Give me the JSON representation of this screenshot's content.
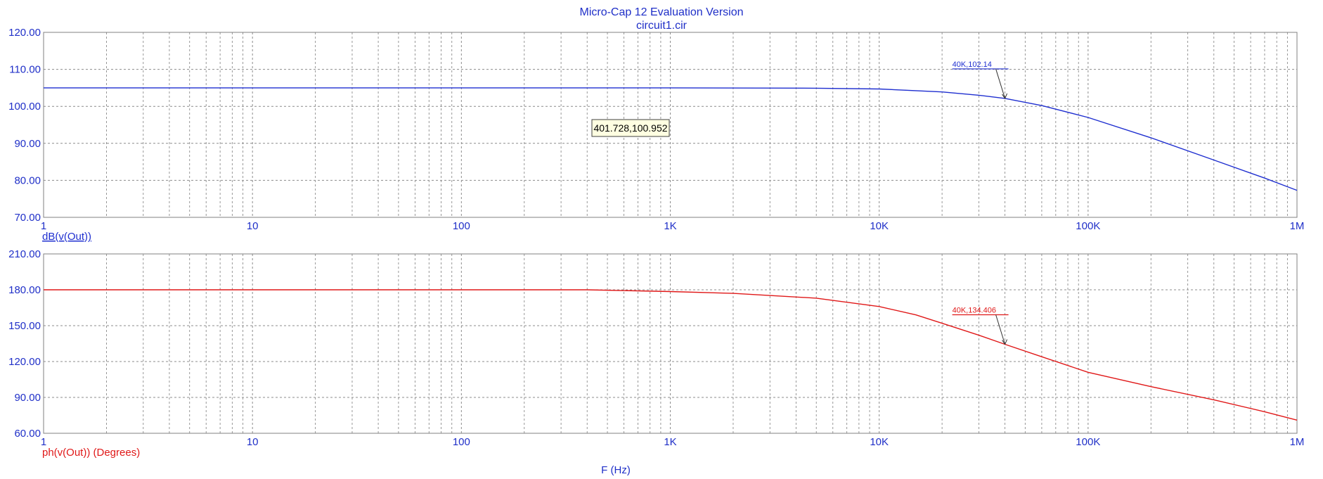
{
  "title_line1": "Micro-Cap 12 Evaluation Version",
  "title_line2": "circuit1.cir",
  "colors": {
    "axis_text": "#1f2fc8",
    "series_mag": "#1f2fd0",
    "series_phase": "#e01818",
    "grid": "#8c8c8c",
    "tooltip_bg": "#ffffe1"
  },
  "chart_data": [
    {
      "type": "line",
      "x_scale": "log",
      "xlim": [
        1,
        1000000
      ],
      "x_tick_labels": [
        "1",
        "10",
        "100",
        "1K",
        "10K",
        "100K",
        "1M"
      ],
      "ylim": [
        70,
        120
      ],
      "y_tick_values": [
        70,
        80,
        90,
        100,
        110,
        120
      ],
      "y_tick_labels": [
        "70.00",
        "80.00",
        "90.00",
        "100.00",
        "110.00",
        "120.00"
      ],
      "ylabel": "dB(v(Out))",
      "grid": true,
      "series": [
        {
          "x": [
            1,
            10,
            100,
            1000,
            5000,
            10000,
            20000,
            30000,
            40000,
            60000,
            100000,
            200000,
            400000,
            700000,
            1000000
          ],
          "y": [
            105.0,
            105.0,
            105.0,
            105.0,
            104.9,
            104.7,
            103.9,
            103.0,
            102.14,
            100.2,
            97.0,
            91.5,
            85.5,
            80.6,
            77.3
          ]
        }
      ],
      "annotations": [
        {
          "label": "40K,102.14",
          "x": 40000,
          "y": 102.14
        }
      ],
      "tooltip": {
        "label": "401.728,100.952"
      }
    },
    {
      "type": "line",
      "x_scale": "log",
      "xlim": [
        1,
        1000000
      ],
      "x_tick_labels": [
        "1",
        "10",
        "100",
        "1K",
        "10K",
        "100K",
        "1M"
      ],
      "ylim": [
        60,
        210
      ],
      "y_tick_values": [
        60,
        90,
        120,
        150,
        180,
        210
      ],
      "y_tick_labels": [
        "60.00",
        "90.00",
        "120.00",
        "150.00",
        "180.00",
        "210.00"
      ],
      "ylabel": "ph(v(Out)) (Degrees)",
      "xlabel": "F (Hz)",
      "grid": true,
      "series": [
        {
          "x": [
            1,
            10,
            100,
            400,
            1000,
            2000,
            5000,
            10000,
            15000,
            20000,
            30000,
            40000,
            60000,
            100000,
            200000,
            400000,
            700000,
            1000000
          ],
          "y": [
            180,
            180,
            180,
            180,
            178.5,
            177,
            173,
            166,
            159,
            152,
            142,
            134.406,
            124,
            111,
            99,
            88,
            78,
            71
          ]
        }
      ],
      "annotations": [
        {
          "label": "40K,134.406",
          "x": 40000,
          "y": 134.406
        }
      ]
    }
  ]
}
